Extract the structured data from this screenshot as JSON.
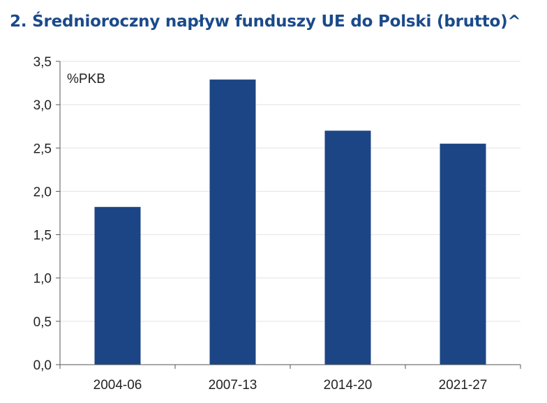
{
  "title": "2. Średnioroczny napływ funduszy UE do Polski (brutto)^",
  "colors": {
    "title": "#1a4a8a",
    "bar": "#1b4585",
    "grid": "#e2e2e2",
    "axis": "#555555"
  },
  "chart_data": {
    "type": "bar",
    "title": "2. Średnioroczny napływ funduszy UE do Polski (brutto)^",
    "unit_label": "%PKB",
    "categories": [
      "2004-06",
      "2007-13",
      "2014-20",
      "2021-27"
    ],
    "values": [
      1.82,
      3.29,
      2.7,
      2.55
    ],
    "ylim": [
      0,
      3.5
    ],
    "yticks": [
      0,
      0.5,
      1,
      1.5,
      2,
      2.5,
      3,
      3.5
    ],
    "ytick_labels": [
      "0,0",
      "0,5",
      "1,0",
      "1,5",
      "2,0",
      "2,5",
      "3,0",
      "3,5"
    ],
    "grid": true,
    "legend": "none"
  }
}
